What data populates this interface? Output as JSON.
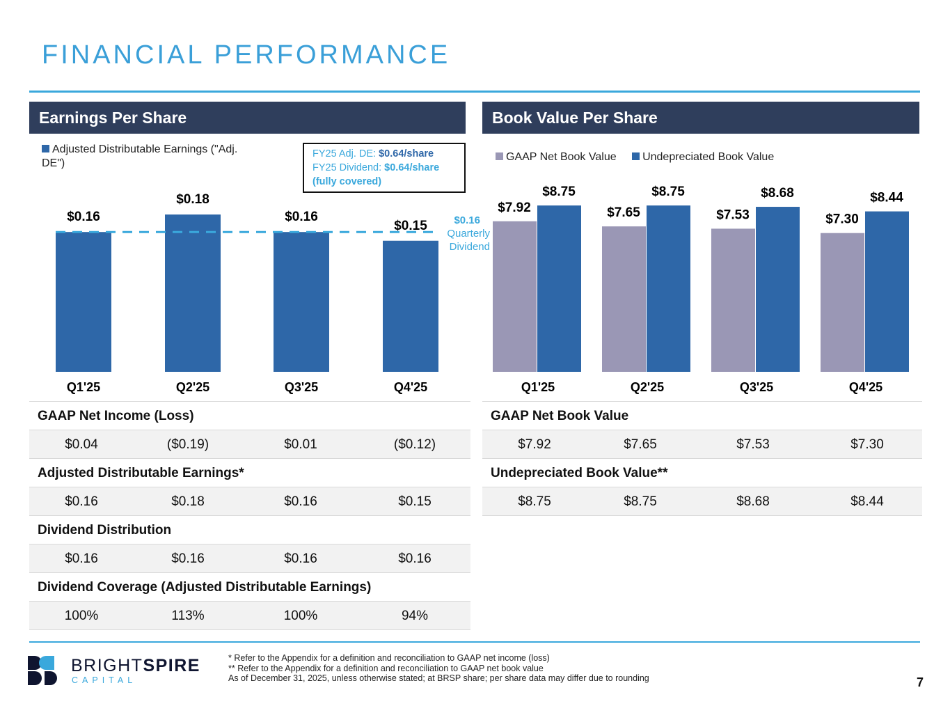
{
  "title": "FINANCIAL PERFORMANCE",
  "page_number": "7",
  "colors": {
    "bar_blue": "#2e67a8",
    "bar_gray": "#9a97b5",
    "accent": "#3aa8dc",
    "header": "#2f3e5c"
  },
  "eps": {
    "header": "Earnings Per Share",
    "legend": "Adjusted Distributable Earnings (\"Adj. DE\")",
    "callout": {
      "line1_prefix": "FY25 Adj. DE: ",
      "line1_value": "$0.64/share",
      "line2_prefix": "FY25 Dividend: ",
      "line2_value": "$0.64/share",
      "line3": "(fully covered)"
    },
    "dividend_value": "$0.16",
    "dividend_label1": "Quarterly",
    "dividend_label2": "Dividend",
    "table": [
      {
        "label": "GAAP Net Income (Loss)",
        "values": [
          "$0.04",
          "($0.19)",
          "$0.01",
          "($0.12)"
        ]
      },
      {
        "label": "Adjusted Distributable Earnings*",
        "values": [
          "$0.16",
          "$0.18",
          "$0.16",
          "$0.15"
        ]
      },
      {
        "label": "Dividend Distribution",
        "values": [
          "$0.16",
          "$0.16",
          "$0.16",
          "$0.16"
        ]
      },
      {
        "label": "Dividend Coverage (Adjusted Distributable Earnings)",
        "values": [
          "100%",
          "113%",
          "100%",
          "94%"
        ]
      }
    ]
  },
  "bv": {
    "header": "Book Value Per Share",
    "legend": [
      "GAAP Net Book Value",
      "Undepreciated Book Value"
    ],
    "table": [
      {
        "label": "GAAP Net Book Value",
        "values": [
          "$7.92",
          "$7.65",
          "$7.53",
          "$7.30"
        ]
      },
      {
        "label": "Undepreciated Book Value**",
        "values": [
          "$8.75",
          "$8.75",
          "$8.68",
          "$8.44"
        ]
      }
    ]
  },
  "chart_data": [
    {
      "type": "bar",
      "title": "Earnings Per Share",
      "categories": [
        "Q1'25",
        "Q2'25",
        "Q3'25",
        "Q4'25"
      ],
      "series": [
        {
          "name": "Adjusted Distributable Earnings (\"Adj. DE\")",
          "values": [
            0.16,
            0.18,
            0.16,
            0.15
          ],
          "labels": [
            "$0.16",
            "$0.18",
            "$0.16",
            "$0.15"
          ]
        }
      ],
      "reference_line": {
        "value": 0.16,
        "label": "$0.16 Quarterly Dividend"
      },
      "ylim": [
        0,
        0.2
      ],
      "grid": false,
      "legend": "top-left"
    },
    {
      "type": "bar",
      "title": "Book Value Per Share",
      "categories": [
        "Q1'25",
        "Q2'25",
        "Q3'25",
        "Q4'25"
      ],
      "series": [
        {
          "name": "GAAP Net Book Value",
          "values": [
            7.92,
            7.65,
            7.53,
            7.3
          ],
          "labels": [
            "$7.92",
            "$7.65",
            "$7.53",
            "$7.30"
          ]
        },
        {
          "name": "Undepreciated Book Value",
          "values": [
            8.75,
            8.75,
            8.68,
            8.44
          ],
          "labels": [
            "$8.75",
            "$8.75",
            "$8.68",
            "$8.44"
          ]
        }
      ],
      "ylim": [
        0,
        10
      ],
      "grid": false,
      "legend": "top"
    }
  ],
  "footnotes": [
    "* Refer to the Appendix for a definition and reconciliation to GAAP net income (loss)",
    "**  Refer to the Appendix for a definition and reconciliation to GAAP net book value",
    "As of December 31, 2025, unless otherwise stated; at BRSP share; per share data may differ due to rounding"
  ],
  "logo": {
    "name_light": "BRIGHT",
    "name_bold": "SPIRE",
    "sub": "CAPITAL"
  }
}
